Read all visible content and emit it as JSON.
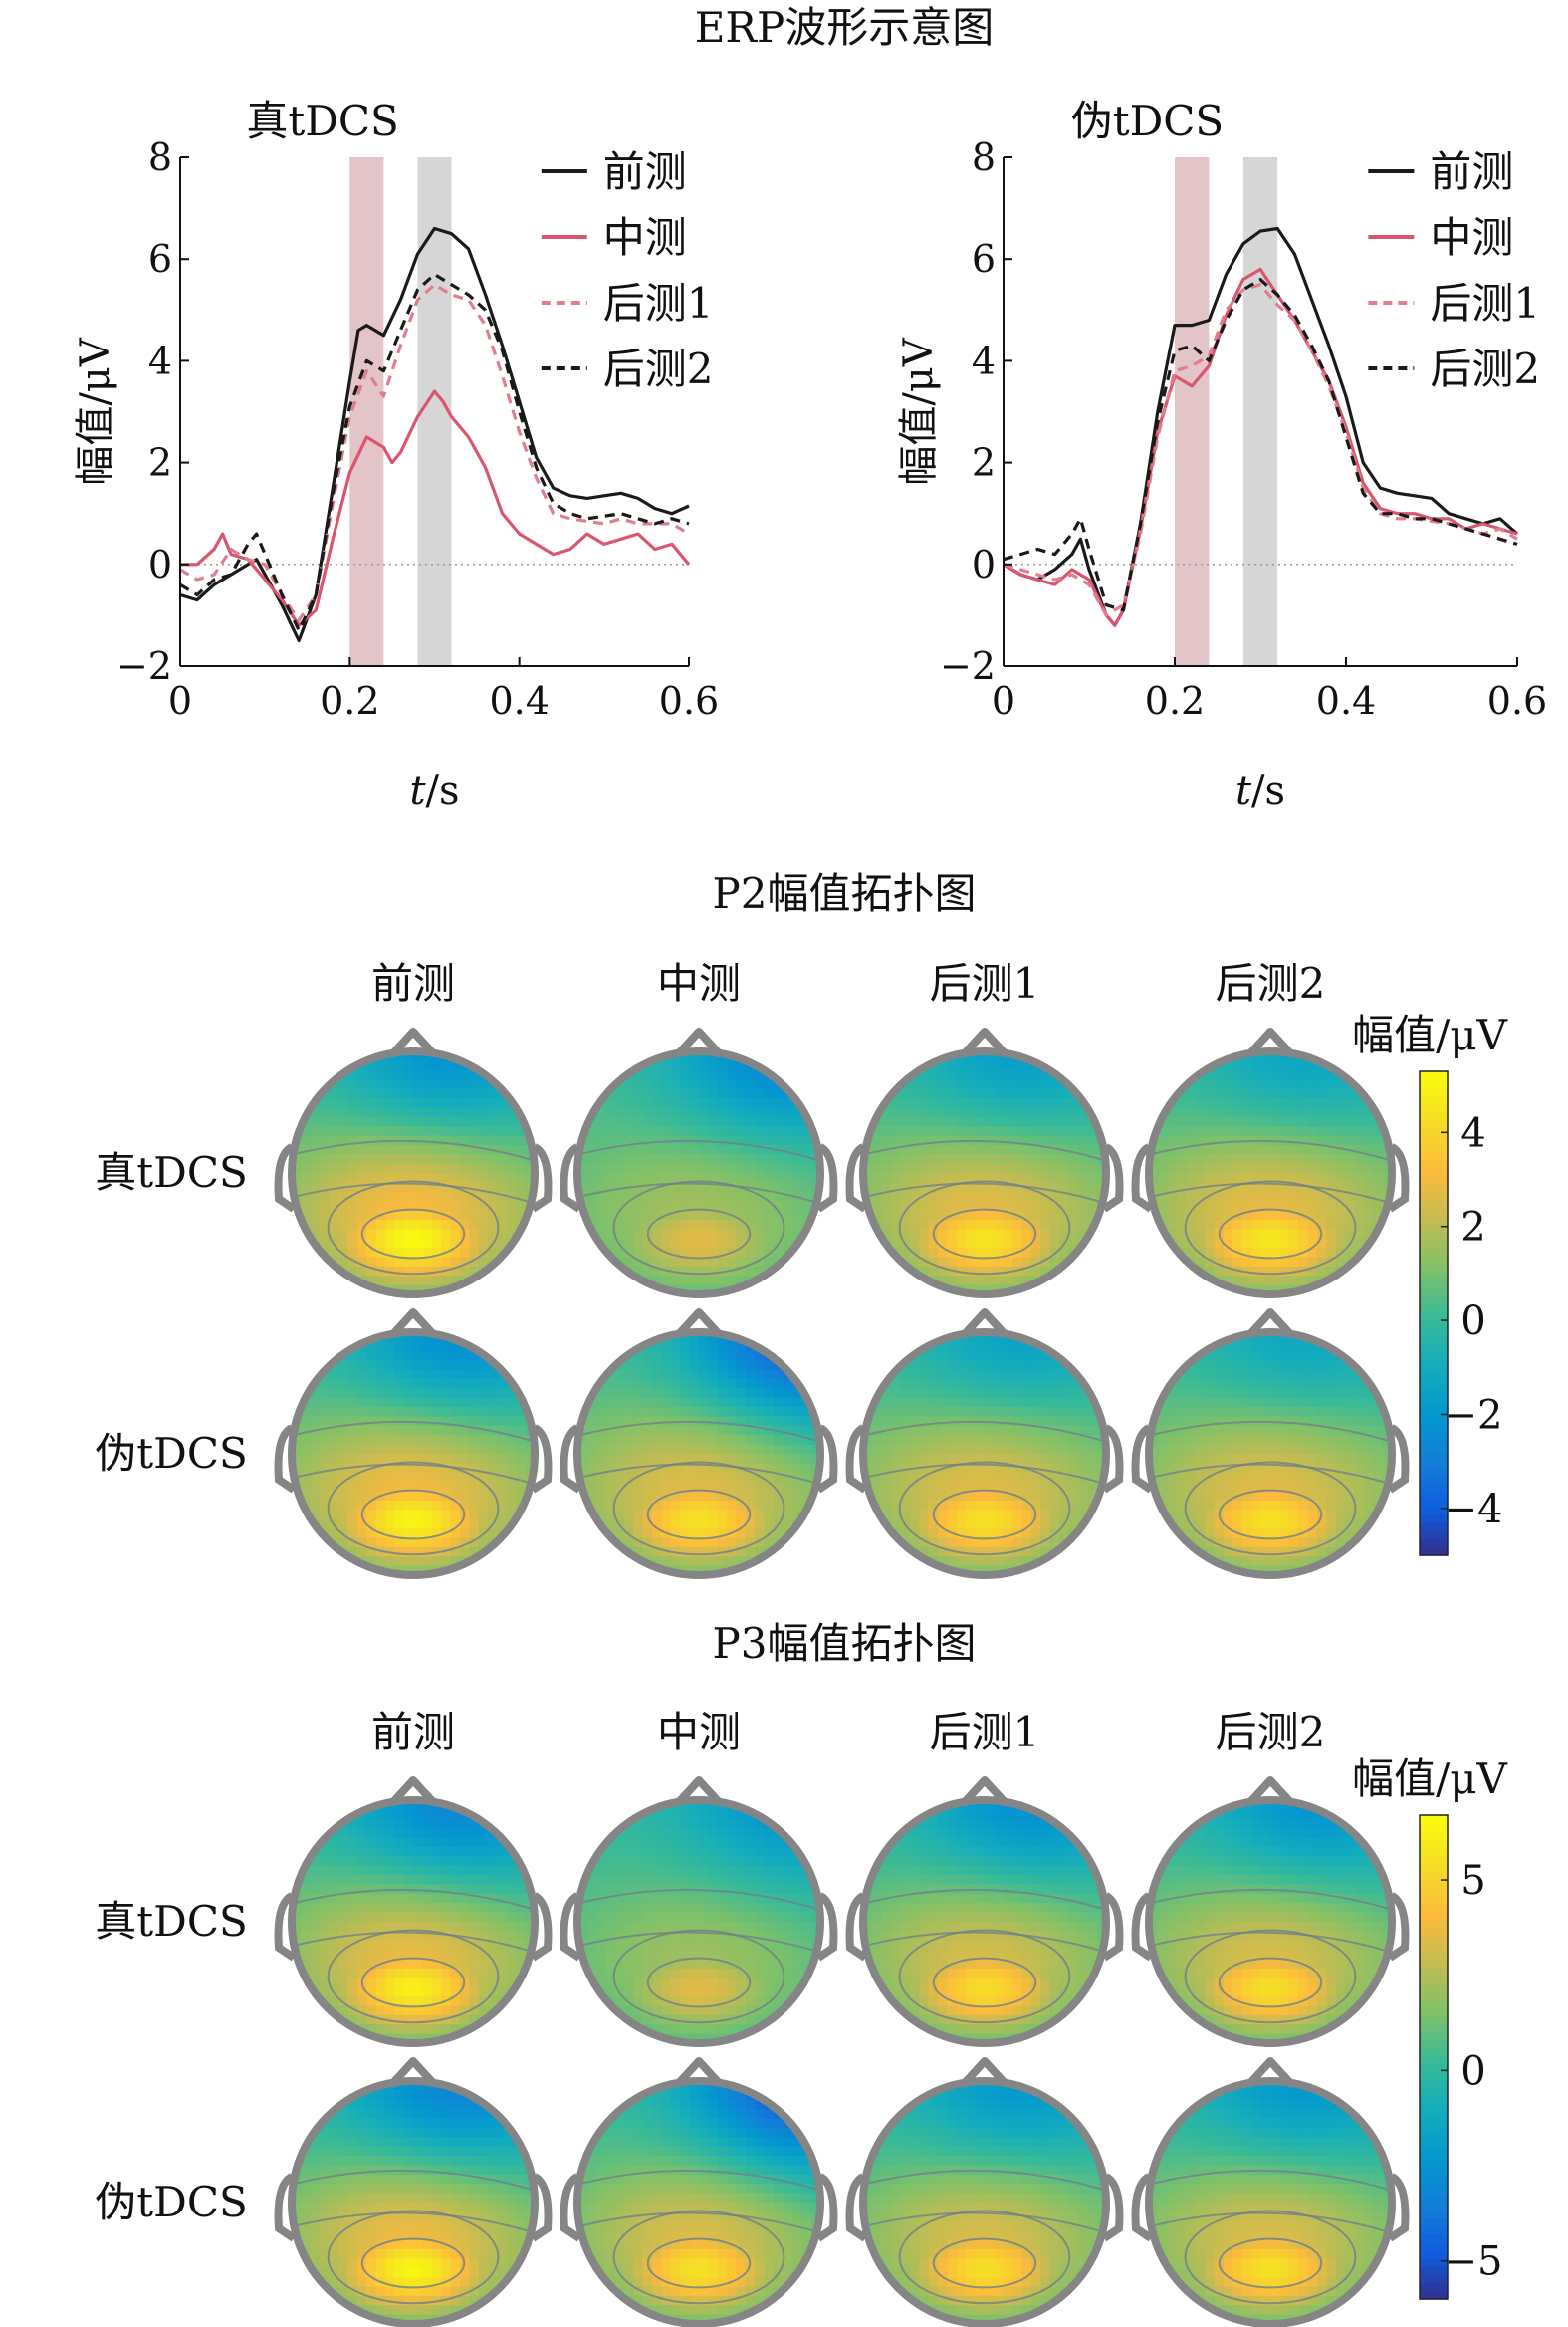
{
  "figure": {
    "erp_title": "ERP波形示意图",
    "p2_title": "P2幅值拓扑图",
    "p3_title": "P3幅值拓扑图"
  },
  "chart_data": [
    {
      "type": "line",
      "title": "真tDCS",
      "xlabel_italic": "t",
      "xlabel_unit": "/s",
      "ylabel": "幅值/μV",
      "xlim": [
        0,
        0.6
      ],
      "ylim": [
        -2,
        8
      ],
      "xticks": [
        0,
        0.2,
        0.4,
        0.6
      ],
      "xtick_labels": [
        "0",
        "0.2",
        "0.4",
        "0.6"
      ],
      "yticks": [
        -2,
        0,
        2,
        4,
        6,
        8
      ],
      "ytick_labels": [
        "−2",
        "0",
        "2",
        "4",
        "6",
        "8"
      ],
      "highlight_windows": [
        {
          "x0": 0.2,
          "x1": 0.24,
          "color": "#e3c4c9"
        },
        {
          "x0": 0.28,
          "x1": 0.32,
          "color": "#d6d6d6"
        }
      ],
      "legend_position": "top-right",
      "series": [
        {
          "name": "前测",
          "color": "#1a1a1a",
          "dash": "solid",
          "x": [
            0,
            0.02,
            0.04,
            0.06,
            0.08,
            0.09,
            0.1,
            0.12,
            0.14,
            0.16,
            0.18,
            0.2,
            0.21,
            0.22,
            0.24,
            0.26,
            0.28,
            0.3,
            0.32,
            0.34,
            0.36,
            0.38,
            0.4,
            0.42,
            0.44,
            0.46,
            0.48,
            0.5,
            0.52,
            0.54,
            0.56,
            0.58,
            0.6
          ],
          "y": [
            -0.6,
            -0.7,
            -0.4,
            -0.2,
            0,
            0.1,
            -0.2,
            -0.8,
            -1.5,
            -0.6,
            1.5,
            3.6,
            4.6,
            4.7,
            4.5,
            5.2,
            6.1,
            6.6,
            6.5,
            6.2,
            5.3,
            4.3,
            3.2,
            2.1,
            1.5,
            1.35,
            1.3,
            1.35,
            1.4,
            1.3,
            1.1,
            1.0,
            1.15
          ]
        },
        {
          "name": "中测",
          "color": "#d9566d",
          "dash": "solid",
          "x": [
            0,
            0.02,
            0.04,
            0.05,
            0.06,
            0.08,
            0.1,
            0.12,
            0.14,
            0.16,
            0.18,
            0.2,
            0.22,
            0.24,
            0.25,
            0.26,
            0.28,
            0.3,
            0.31,
            0.32,
            0.34,
            0.36,
            0.38,
            0.4,
            0.42,
            0.44,
            0.46,
            0.48,
            0.5,
            0.52,
            0.54,
            0.56,
            0.58,
            0.6
          ],
          "y": [
            0,
            0,
            0.3,
            0.6,
            0.2,
            0.1,
            -0.3,
            -0.7,
            -1.2,
            -0.9,
            0.5,
            1.8,
            2.5,
            2.3,
            2.0,
            2.2,
            2.9,
            3.4,
            3.2,
            2.9,
            2.5,
            1.9,
            1.0,
            0.6,
            0.4,
            0.2,
            0.3,
            0.6,
            0.4,
            0.5,
            0.6,
            0.3,
            0.4,
            0
          ]
        },
        {
          "name": "后测1",
          "color": "#e07e8e",
          "dash": "dashed",
          "x": [
            0,
            0.02,
            0.04,
            0.06,
            0.08,
            0.1,
            0.12,
            0.14,
            0.16,
            0.18,
            0.2,
            0.22,
            0.24,
            0.26,
            0.28,
            0.3,
            0.32,
            0.34,
            0.36,
            0.38,
            0.4,
            0.42,
            0.44,
            0.46,
            0.48,
            0.5,
            0.52,
            0.54,
            0.56,
            0.58,
            0.6
          ],
          "y": [
            -0.1,
            -0.3,
            -0.2,
            0.3,
            0.1,
            0,
            -0.6,
            -1.1,
            -0.6,
            1.2,
            2.9,
            3.8,
            3.3,
            4.3,
            5.2,
            5.5,
            5.3,
            5.2,
            4.7,
            3.7,
            2.6,
            1.7,
            1.0,
            0.9,
            0.85,
            0.8,
            0.9,
            0.8,
            0.8,
            0.8,
            0.6
          ]
        },
        {
          "name": "后测2",
          "color": "#1a1a1a",
          "dash": "dashed",
          "x": [
            0,
            0.02,
            0.04,
            0.06,
            0.08,
            0.09,
            0.1,
            0.12,
            0.14,
            0.16,
            0.18,
            0.2,
            0.22,
            0.24,
            0.26,
            0.28,
            0.3,
            0.32,
            0.34,
            0.36,
            0.38,
            0.4,
            0.42,
            0.44,
            0.46,
            0.48,
            0.5,
            0.52,
            0.54,
            0.56,
            0.58,
            0.6
          ],
          "y": [
            -0.4,
            -0.6,
            -0.3,
            -0.2,
            0.4,
            0.6,
            0.2,
            -0.6,
            -1.3,
            -0.6,
            1.4,
            3.1,
            4.0,
            3.8,
            4.6,
            5.4,
            5.7,
            5.5,
            5.3,
            5.0,
            4.2,
            3.0,
            1.9,
            1.2,
            1.0,
            0.9,
            0.95,
            1.0,
            0.9,
            0.8,
            0.9,
            0.8
          ]
        }
      ]
    },
    {
      "type": "line",
      "title": "伪tDCS",
      "xlabel_italic": "t",
      "xlabel_unit": "/s",
      "ylabel": "幅值/μV",
      "xlim": [
        0,
        0.6
      ],
      "ylim": [
        -2,
        8
      ],
      "xticks": [
        0,
        0.2,
        0.4,
        0.6
      ],
      "xtick_labels": [
        "0",
        "0.2",
        "0.4",
        "0.6"
      ],
      "yticks": [
        -2,
        0,
        2,
        4,
        6,
        8
      ],
      "ytick_labels": [
        "−2",
        "0",
        "2",
        "4",
        "6",
        "8"
      ],
      "highlight_windows": [
        {
          "x0": 0.2,
          "x1": 0.24,
          "color": "#e3c4c9"
        },
        {
          "x0": 0.28,
          "x1": 0.32,
          "color": "#d6d6d6"
        }
      ],
      "legend_position": "top-right",
      "series": [
        {
          "name": "前测",
          "color": "#1a1a1a",
          "dash": "solid",
          "x": [
            0,
            0.02,
            0.04,
            0.06,
            0.08,
            0.09,
            0.1,
            0.12,
            0.13,
            0.14,
            0.16,
            0.18,
            0.2,
            0.22,
            0.24,
            0.26,
            0.28,
            0.3,
            0.32,
            0.34,
            0.36,
            0.38,
            0.4,
            0.42,
            0.44,
            0.46,
            0.48,
            0.5,
            0.52,
            0.54,
            0.56,
            0.58,
            0.6
          ],
          "y": [
            0,
            -0.2,
            -0.3,
            -0.1,
            0.2,
            0.5,
            -0.1,
            -1.0,
            -1.2,
            -0.9,
            0.8,
            3.0,
            4.7,
            4.7,
            4.8,
            5.7,
            6.3,
            6.55,
            6.6,
            6.1,
            5.2,
            4.3,
            3.3,
            2.0,
            1.5,
            1.4,
            1.35,
            1.3,
            1.0,
            0.9,
            0.8,
            0.9,
            0.6
          ]
        },
        {
          "name": "中测",
          "color": "#d9566d",
          "dash": "solid",
          "x": [
            0,
            0.02,
            0.04,
            0.06,
            0.08,
            0.1,
            0.12,
            0.13,
            0.14,
            0.16,
            0.18,
            0.2,
            0.22,
            0.24,
            0.26,
            0.28,
            0.3,
            0.32,
            0.34,
            0.36,
            0.38,
            0.4,
            0.42,
            0.44,
            0.46,
            0.48,
            0.5,
            0.52,
            0.54,
            0.56,
            0.58,
            0.6
          ],
          "y": [
            0,
            -0.2,
            -0.3,
            -0.4,
            -0.1,
            -0.3,
            -1.0,
            -1.2,
            -0.9,
            0.7,
            2.6,
            3.7,
            3.5,
            3.9,
            4.9,
            5.6,
            5.8,
            5.3,
            4.8,
            4.2,
            3.6,
            2.7,
            1.6,
            1.1,
            1.0,
            1.0,
            0.9,
            0.9,
            0.7,
            0.8,
            0.7,
            0.6
          ]
        },
        {
          "name": "后测1",
          "color": "#e07e8e",
          "dash": "dashed",
          "x": [
            0,
            0.02,
            0.04,
            0.06,
            0.08,
            0.1,
            0.12,
            0.14,
            0.16,
            0.18,
            0.2,
            0.22,
            0.24,
            0.26,
            0.28,
            0.3,
            0.32,
            0.34,
            0.36,
            0.38,
            0.4,
            0.42,
            0.44,
            0.46,
            0.48,
            0.5,
            0.52,
            0.54,
            0.56,
            0.58,
            0.6
          ],
          "y": [
            0,
            -0.1,
            -0.2,
            -0.3,
            -0.2,
            -0.4,
            -1.0,
            -0.8,
            0.6,
            2.5,
            3.8,
            3.9,
            4.1,
            5.0,
            5.4,
            5.5,
            5.1,
            4.8,
            4.2,
            3.5,
            2.6,
            1.5,
            1.0,
            0.9,
            0.9,
            0.85,
            0.8,
            0.7,
            0.6,
            0.7,
            0.5
          ]
        },
        {
          "name": "后测2",
          "color": "#1a1a1a",
          "dash": "dashed",
          "x": [
            0,
            0.02,
            0.04,
            0.06,
            0.08,
            0.09,
            0.1,
            0.12,
            0.14,
            0.16,
            0.18,
            0.2,
            0.22,
            0.24,
            0.26,
            0.28,
            0.3,
            0.32,
            0.34,
            0.36,
            0.38,
            0.4,
            0.42,
            0.44,
            0.46,
            0.48,
            0.5,
            0.52,
            0.54,
            0.56,
            0.58,
            0.6
          ],
          "y": [
            0.1,
            0.2,
            0.3,
            0.2,
            0.6,
            0.9,
            0.3,
            -0.8,
            -0.9,
            0.8,
            2.8,
            4.2,
            4.3,
            4.0,
            4.8,
            5.4,
            5.6,
            5.3,
            4.9,
            4.3,
            3.6,
            2.5,
            1.4,
            1.0,
            1.0,
            0.9,
            0.9,
            0.8,
            0.7,
            0.6,
            0.5,
            0.4
          ]
        }
      ]
    },
    {
      "type": "heatmap",
      "subtype": "scalp-topography",
      "title": "P2幅值拓扑图",
      "columns": [
        "前测",
        "中测",
        "后测1",
        "后测2"
      ],
      "rows": [
        "真tDCS",
        "伪tDCS"
      ],
      "colorbar_label": "幅值/μV",
      "colorbar_range": [
        -5,
        5.3
      ],
      "colorbar_ticks": [
        4,
        2,
        0,
        -2,
        -4
      ],
      "colorbar_tick_labels": [
        "4",
        "2",
        "0",
        "−2",
        "−4"
      ],
      "colormap": "parula",
      "maps": [
        [
          {
            "back_peak": 5.0,
            "front_min": -2.5,
            "tilt": 0.3
          },
          {
            "back_peak": 2.5,
            "front_min": -3.0,
            "tilt": 0.7
          },
          {
            "back_peak": 4.3,
            "front_min": -2.0,
            "tilt": 0.3
          },
          {
            "back_peak": 4.4,
            "front_min": -1.7,
            "tilt": 0.3
          }
        ],
        [
          {
            "back_peak": 4.8,
            "front_min": -2.7,
            "tilt": 0.4
          },
          {
            "back_peak": 4.2,
            "front_min": -4.6,
            "tilt": 0.9
          },
          {
            "back_peak": 4.2,
            "front_min": -1.8,
            "tilt": 0.3
          },
          {
            "back_peak": 4.2,
            "front_min": -1.6,
            "tilt": 0.3
          }
        ]
      ]
    },
    {
      "type": "heatmap",
      "subtype": "scalp-topography",
      "title": "P3幅值拓扑图",
      "columns": [
        "前测",
        "中测",
        "后测1",
        "后测2"
      ],
      "rows": [
        "真tDCS",
        "伪tDCS"
      ],
      "colorbar_label": "幅值/μV",
      "colorbar_range": [
        -6,
        6.7
      ],
      "colorbar_ticks": [
        5,
        0,
        -5
      ],
      "colorbar_tick_labels": [
        "5",
        "0",
        "−5"
      ],
      "colormap": "parula",
      "maps": [
        [
          {
            "back_peak": 6.0,
            "front_min": -3.5,
            "tilt": 0.4
          },
          {
            "back_peak": 3.3,
            "front_min": -2.8,
            "tilt": 0.8
          },
          {
            "back_peak": 5.2,
            "front_min": -3.0,
            "tilt": 0.4
          },
          {
            "back_peak": 5.3,
            "front_min": -2.8,
            "tilt": 0.4
          }
        ],
        [
          {
            "back_peak": 6.2,
            "front_min": -3.6,
            "tilt": 0.4
          },
          {
            "back_peak": 5.4,
            "front_min": -5.6,
            "tilt": 0.9
          },
          {
            "back_peak": 5.3,
            "front_min": -2.6,
            "tilt": 0.3
          },
          {
            "back_peak": 5.4,
            "front_min": -2.6,
            "tilt": 0.3
          }
        ]
      ]
    }
  ]
}
